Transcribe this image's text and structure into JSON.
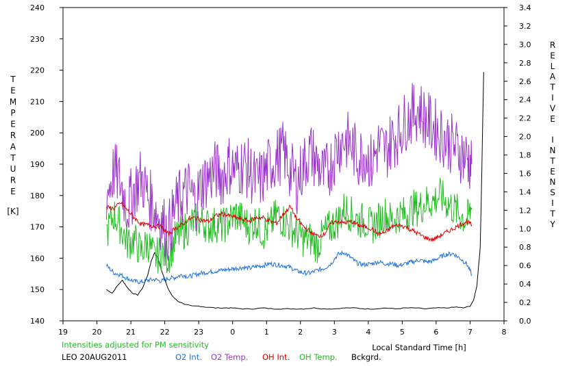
{
  "chart_data": {
    "type": "line",
    "title": "",
    "xlabel": "Local Standard Time [h]",
    "ylabel_left_letters": [
      "T",
      "E",
      "M",
      "P",
      "E",
      "R",
      "A",
      "T",
      "U",
      "R",
      "E"
    ],
    "ylabel_left_unit": "[K]",
    "ylabel_right_letters": [
      "R",
      "E",
      "L",
      "A",
      "T",
      "I",
      "V",
      "E",
      "",
      "I",
      "N",
      "T",
      "E",
      "N",
      "S",
      "I",
      "T",
      "Y"
    ],
    "xlim": [
      19,
      32
    ],
    "ylim_left": [
      140,
      240
    ],
    "ylim_right": [
      0.0,
      3.4
    ],
    "x_ticks": [
      19,
      20,
      21,
      22,
      23,
      24,
      25,
      26,
      27,
      28,
      29,
      30,
      31,
      32
    ],
    "x_tick_labels": [
      "19",
      "20",
      "21",
      "22",
      "23",
      "0",
      "1",
      "2",
      "3",
      "4",
      "5",
      "6",
      "7",
      "8"
    ],
    "y_left_ticks": [
      140,
      150,
      160,
      170,
      180,
      190,
      200,
      210,
      220,
      230,
      240
    ],
    "y_left_tick_labels": [
      "140",
      "150",
      "160",
      "170",
      "180",
      "190",
      "200",
      "210",
      "220",
      "230",
      "240"
    ],
    "y_right_ticks": [
      0.0,
      0.2,
      0.4,
      0.6,
      0.8,
      1.0,
      1.2,
      1.4,
      1.6,
      1.8,
      2.0,
      2.2,
      2.4,
      2.6,
      2.8,
      3.0,
      3.2,
      3.4
    ],
    "y_right_tick_labels": [
      "0.0",
      "0.2",
      "0.4",
      "0.6",
      "0.8",
      "1.0",
      "1.2",
      "1.4",
      "1.6",
      "1.8",
      "2.0",
      "2.2",
      "2.4",
      "2.6",
      "2.8",
      "3.0",
      "3.2",
      "3.4"
    ],
    "grid": false,
    "legend_placement": "bottom",
    "note": "Intensities adjusted for PM sensitivity",
    "site_date": "LEO 20AUG2011",
    "series": [
      {
        "name": "O2 Int.",
        "axis": "right",
        "color": "#1a6fdc",
        "x": [
          20.28,
          20.5,
          20.7,
          20.9,
          21.1,
          21.3,
          21.5,
          21.7,
          21.9,
          22.1,
          22.3,
          22.5,
          22.7,
          22.9,
          23.1,
          23.3,
          23.5,
          23.7,
          23.9,
          24.1,
          24.3,
          24.5,
          24.7,
          24.9,
          25.1,
          25.3,
          25.5,
          25.7,
          25.9,
          26.1,
          26.3,
          26.5,
          26.7,
          26.9,
          27.1,
          27.3,
          27.5,
          27.7,
          27.9,
          28.1,
          28.3,
          28.5,
          28.7,
          28.9,
          29.1,
          29.3,
          29.5,
          29.7,
          29.9,
          30.1,
          30.3,
          30.5,
          30.7,
          30.9,
          31.05
        ],
        "y": [
          0.6,
          0.52,
          0.5,
          0.46,
          0.43,
          0.42,
          0.44,
          0.45,
          0.43,
          0.46,
          0.47,
          0.5,
          0.48,
          0.5,
          0.52,
          0.53,
          0.54,
          0.55,
          0.56,
          0.57,
          0.58,
          0.57,
          0.59,
          0.6,
          0.62,
          0.61,
          0.6,
          0.58,
          0.54,
          0.52,
          0.52,
          0.55,
          0.57,
          0.62,
          0.72,
          0.74,
          0.68,
          0.62,
          0.61,
          0.62,
          0.64,
          0.62,
          0.62,
          0.6,
          0.62,
          0.64,
          0.66,
          0.64,
          0.65,
          0.69,
          0.72,
          0.73,
          0.68,
          0.62,
          0.5
        ]
      },
      {
        "name": "O2 Temp.",
        "axis": "left",
        "color": "#9933cc",
        "x": [
          20.28,
          20.5,
          20.7,
          20.9,
          21.1,
          21.3,
          21.5,
          21.7,
          21.9,
          22.1,
          22.3,
          22.5,
          22.7,
          22.9,
          23.1,
          23.3,
          23.5,
          23.7,
          23.9,
          24.1,
          24.3,
          24.5,
          24.7,
          24.9,
          25.1,
          25.3,
          25.5,
          25.7,
          25.9,
          26.1,
          26.3,
          26.5,
          26.7,
          26.9,
          27.1,
          27.3,
          27.5,
          27.7,
          27.9,
          28.1,
          28.3,
          28.5,
          28.7,
          28.9,
          29.1,
          29.3,
          29.5,
          29.7,
          29.9,
          30.1,
          30.3,
          30.5,
          30.7,
          30.9,
          31.05
        ],
        "y": [
          180,
          188,
          184,
          176,
          182,
          186,
          180,
          176,
          172,
          168,
          176,
          180,
          182,
          178,
          184,
          186,
          188,
          186,
          190,
          188,
          190,
          188,
          184,
          186,
          190,
          192,
          194,
          188,
          184,
          190,
          194,
          190,
          186,
          190,
          196,
          198,
          196,
          192,
          194,
          190,
          196,
          194,
          198,
          200,
          204,
          206,
          208,
          204,
          202,
          200,
          198,
          196,
          194,
          192,
          190
        ]
      },
      {
        "name": "OH Int.",
        "axis": "right",
        "color": "#dd0000",
        "x": [
          20.28,
          20.5,
          20.7,
          20.9,
          21.1,
          21.3,
          21.5,
          21.7,
          21.9,
          22.1,
          22.3,
          22.5,
          22.7,
          22.9,
          23.1,
          23.3,
          23.5,
          23.7,
          23.9,
          24.1,
          24.3,
          24.5,
          24.7,
          24.9,
          25.1,
          25.3,
          25.5,
          25.7,
          25.9,
          26.1,
          26.3,
          26.5,
          26.7,
          26.9,
          27.1,
          27.3,
          27.5,
          27.7,
          27.9,
          28.1,
          28.3,
          28.5,
          28.7,
          28.9,
          29.1,
          29.3,
          29.5,
          29.7,
          29.9,
          30.1,
          30.3,
          30.5,
          30.7,
          30.9,
          31.05
        ],
        "y": [
          1.23,
          1.22,
          1.28,
          1.2,
          1.12,
          1.05,
          1.04,
          1.03,
          1.02,
          0.94,
          1.0,
          1.04,
          1.1,
          1.12,
          1.09,
          1.08,
          1.14,
          1.16,
          1.14,
          1.12,
          1.1,
          1.08,
          1.12,
          1.12,
          1.08,
          1.06,
          1.16,
          1.24,
          1.1,
          1.02,
          0.96,
          0.92,
          0.94,
          1.06,
          1.08,
          1.06,
          1.08,
          1.04,
          1.02,
          1.0,
          0.94,
          0.96,
          1.02,
          1.04,
          1.02,
          0.98,
          0.94,
          0.9,
          0.88,
          0.92,
          0.96,
          1.0,
          1.04,
          1.08,
          1.04
        ]
      },
      {
        "name": "OH Temp.",
        "axis": "left",
        "color": "#22bb22",
        "x": [
          20.28,
          20.5,
          20.7,
          20.9,
          21.1,
          21.3,
          21.5,
          21.7,
          21.9,
          22.1,
          22.3,
          22.5,
          22.7,
          22.9,
          23.1,
          23.3,
          23.5,
          23.7,
          23.9,
          24.1,
          24.3,
          24.5,
          24.7,
          24.9,
          25.1,
          25.3,
          25.5,
          25.7,
          25.9,
          26.1,
          26.3,
          26.5,
          26.7,
          26.9,
          27.1,
          27.3,
          27.5,
          27.7,
          27.9,
          28.1,
          28.3,
          28.5,
          28.7,
          28.9,
          29.1,
          29.3,
          29.5,
          29.7,
          29.9,
          30.1,
          30.3,
          30.5,
          30.7,
          30.9,
          31.05
        ],
        "y": [
          168,
          174,
          170,
          165,
          166,
          162,
          165,
          160,
          162,
          160,
          166,
          168,
          170,
          172,
          172,
          170,
          171,
          170,
          172,
          174,
          172,
          170,
          172,
          168,
          170,
          174,
          172,
          170,
          168,
          166,
          166,
          164,
          168,
          170,
          172,
          176,
          174,
          172,
          172,
          170,
          172,
          174,
          172,
          174,
          174,
          176,
          176,
          178,
          178,
          180,
          178,
          176,
          174,
          172,
          176
        ]
      },
      {
        "name": "Bckgrd.",
        "axis": "right",
        "color": "#000000",
        "x": [
          20.28,
          20.45,
          20.6,
          20.75,
          20.9,
          21.05,
          21.2,
          21.35,
          21.5,
          21.6,
          21.7,
          21.8,
          21.9,
          22.0,
          22.1,
          22.2,
          22.3,
          22.4,
          22.6,
          22.8,
          23.0,
          23.2,
          23.5,
          23.8,
          24.0,
          24.3,
          24.6,
          24.9,
          25.2,
          25.5,
          25.8,
          26.1,
          26.4,
          26.7,
          27.0,
          27.3,
          27.6,
          27.9,
          28.2,
          28.5,
          28.8,
          29.1,
          29.4,
          29.7,
          30.0,
          30.3,
          30.6,
          30.8,
          31.0,
          31.1,
          31.2,
          31.3,
          31.35,
          31.4
        ],
        "y": [
          0.34,
          0.3,
          0.38,
          0.44,
          0.36,
          0.3,
          0.28,
          0.36,
          0.5,
          0.65,
          0.74,
          0.68,
          0.55,
          0.45,
          0.35,
          0.28,
          0.24,
          0.21,
          0.18,
          0.16,
          0.16,
          0.15,
          0.14,
          0.14,
          0.14,
          0.13,
          0.13,
          0.14,
          0.13,
          0.13,
          0.13,
          0.13,
          0.14,
          0.13,
          0.13,
          0.14,
          0.14,
          0.13,
          0.13,
          0.14,
          0.13,
          0.14,
          0.14,
          0.13,
          0.14,
          0.14,
          0.15,
          0.14,
          0.16,
          0.22,
          0.38,
          0.8,
          1.7,
          2.7
        ]
      }
    ]
  }
}
